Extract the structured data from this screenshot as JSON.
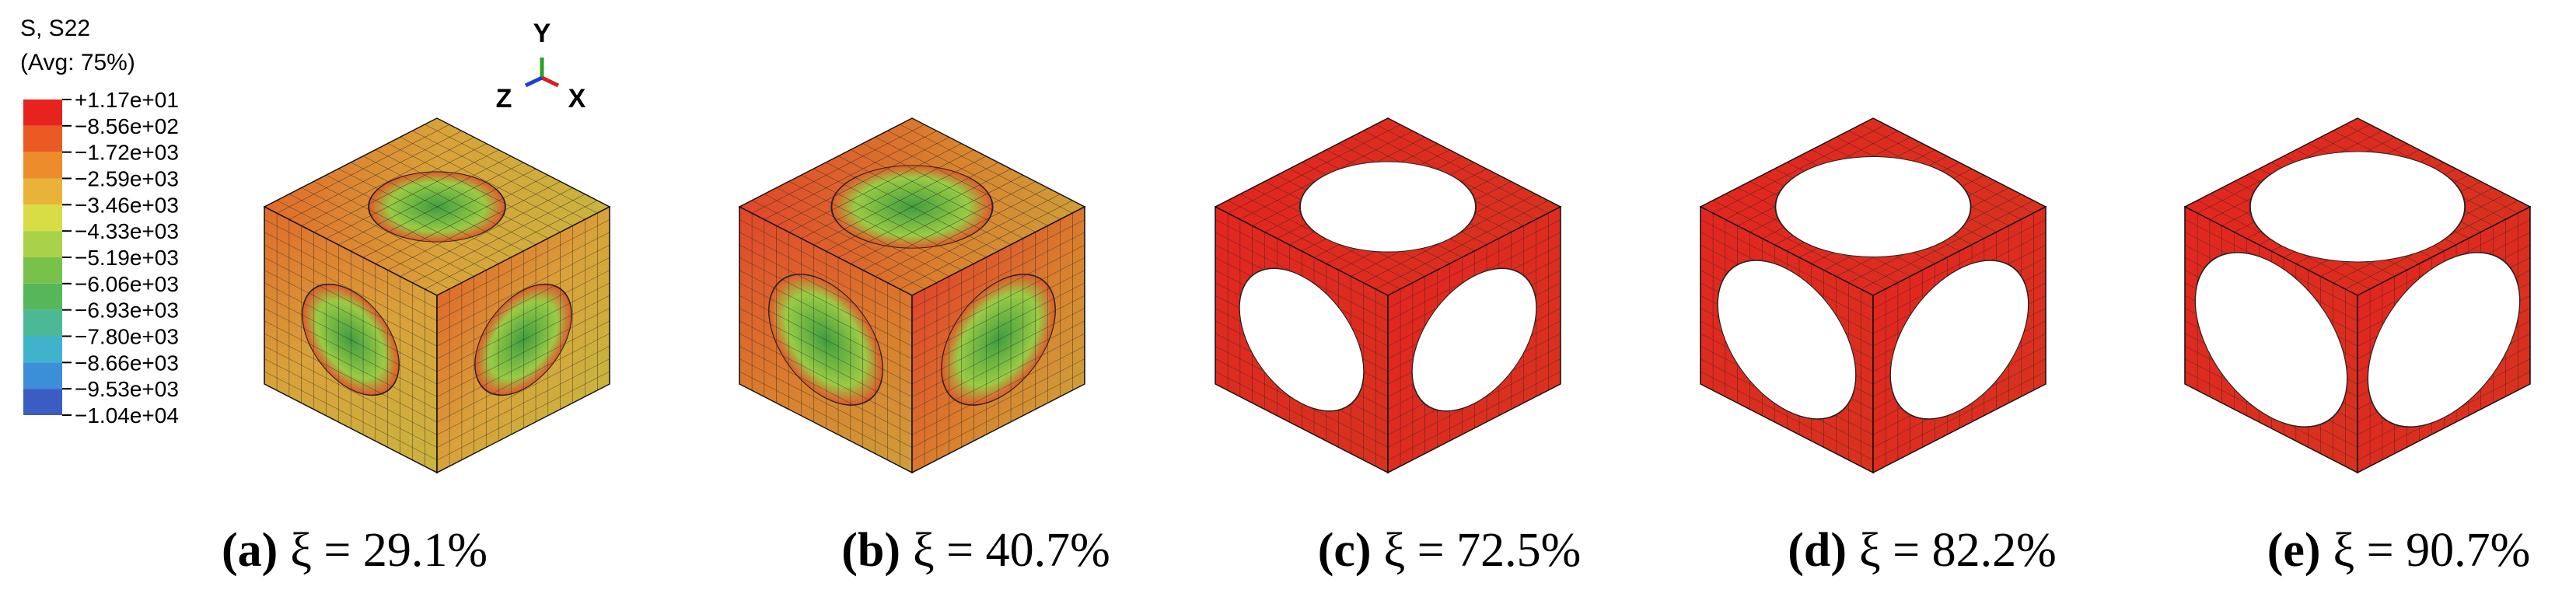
{
  "legend": {
    "title": "S, S22",
    "subtitle": "(Avg: 75%)",
    "labels": [
      "+1.17e+01",
      "−8.56e+02",
      "−1.72e+03",
      "−2.59e+03",
      "−3.46e+03",
      "−4.33e+03",
      "−5.19e+03",
      "−6.06e+03",
      "−6.93e+03",
      "−7.80e+03",
      "−8.66e+03",
      "−9.53e+03",
      "−1.04e+04"
    ],
    "colors": [
      "#e8231d",
      "#ea5a22",
      "#ec8c2b",
      "#e9b33a",
      "#d8dc45",
      "#a9d24a",
      "#78c24b",
      "#55b65a",
      "#4bb896",
      "#3fb3cc",
      "#3b8ed8",
      "#3b5cc2"
    ]
  },
  "triad": {
    "y": "Y",
    "z": "Z",
    "x": "X"
  },
  "panels": [
    {
      "label": "(a)",
      "caption": "ξ = 29.1%"
    },
    {
      "label": "(b)",
      "caption": "ξ = 40.7%"
    },
    {
      "label": "(c)",
      "caption": "ξ = 72.5%"
    },
    {
      "label": "(d)",
      "caption": "ξ = 82.2%"
    },
    {
      "label": "(e)",
      "caption": "ξ = 90.7%"
    }
  ]
}
